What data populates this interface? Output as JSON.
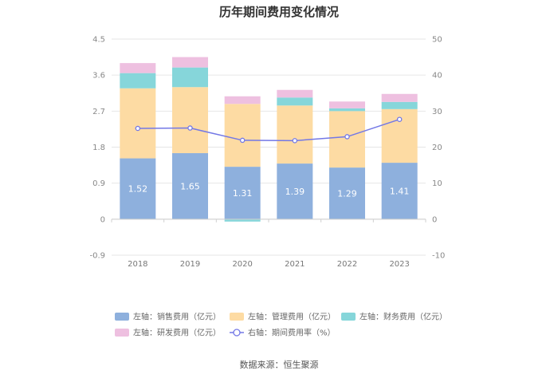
{
  "chart_data": {
    "type": "bar",
    "stacked": true,
    "title": "历年期间费用变化情况",
    "categories": [
      "2018",
      "2019",
      "2020",
      "2021",
      "2022",
      "2023"
    ],
    "y_left": {
      "min": -0.9,
      "max": 4.5,
      "ticks": [
        "-0.9",
        "0",
        "0.9",
        "1.8",
        "2.7",
        "3.6",
        "4.5"
      ]
    },
    "y_right": {
      "min": -10,
      "max": 50,
      "ticks": [
        "-10",
        "0",
        "10",
        "20",
        "30",
        "40",
        "50"
      ]
    },
    "series": [
      {
        "name": "左轴：销售费用（亿元）",
        "axis": "left",
        "color": "#8eb0dd",
        "values": [
          1.52,
          1.65,
          1.31,
          1.39,
          1.29,
          1.41
        ],
        "labels": [
          "1.52",
          "1.65",
          "1.31",
          "1.39",
          "1.29",
          "1.41"
        ]
      },
      {
        "name": "左轴：管理费用（亿元）",
        "axis": "left",
        "color": "#fddba3",
        "values": [
          1.75,
          1.65,
          1.57,
          1.45,
          1.41,
          1.34
        ]
      },
      {
        "name": "左轴：财务费用（亿元）",
        "axis": "left",
        "color": "#86d6da",
        "values": [
          0.38,
          0.49,
          -0.06,
          0.2,
          0.07,
          0.18
        ]
      },
      {
        "name": "左轴：研发费用（亿元）",
        "axis": "left",
        "color": "#eec0e0",
        "values": [
          0.25,
          0.26,
          0.19,
          0.19,
          0.17,
          0.2
        ]
      },
      {
        "name": "右轴：期间费用率（%）",
        "axis": "right",
        "type": "line",
        "color": "#7378e6",
        "values": [
          25.2,
          25.3,
          21.9,
          21.8,
          22.9,
          27.7
        ]
      }
    ],
    "legend_position": "bottom"
  },
  "source": "数据来源：恒生聚源"
}
